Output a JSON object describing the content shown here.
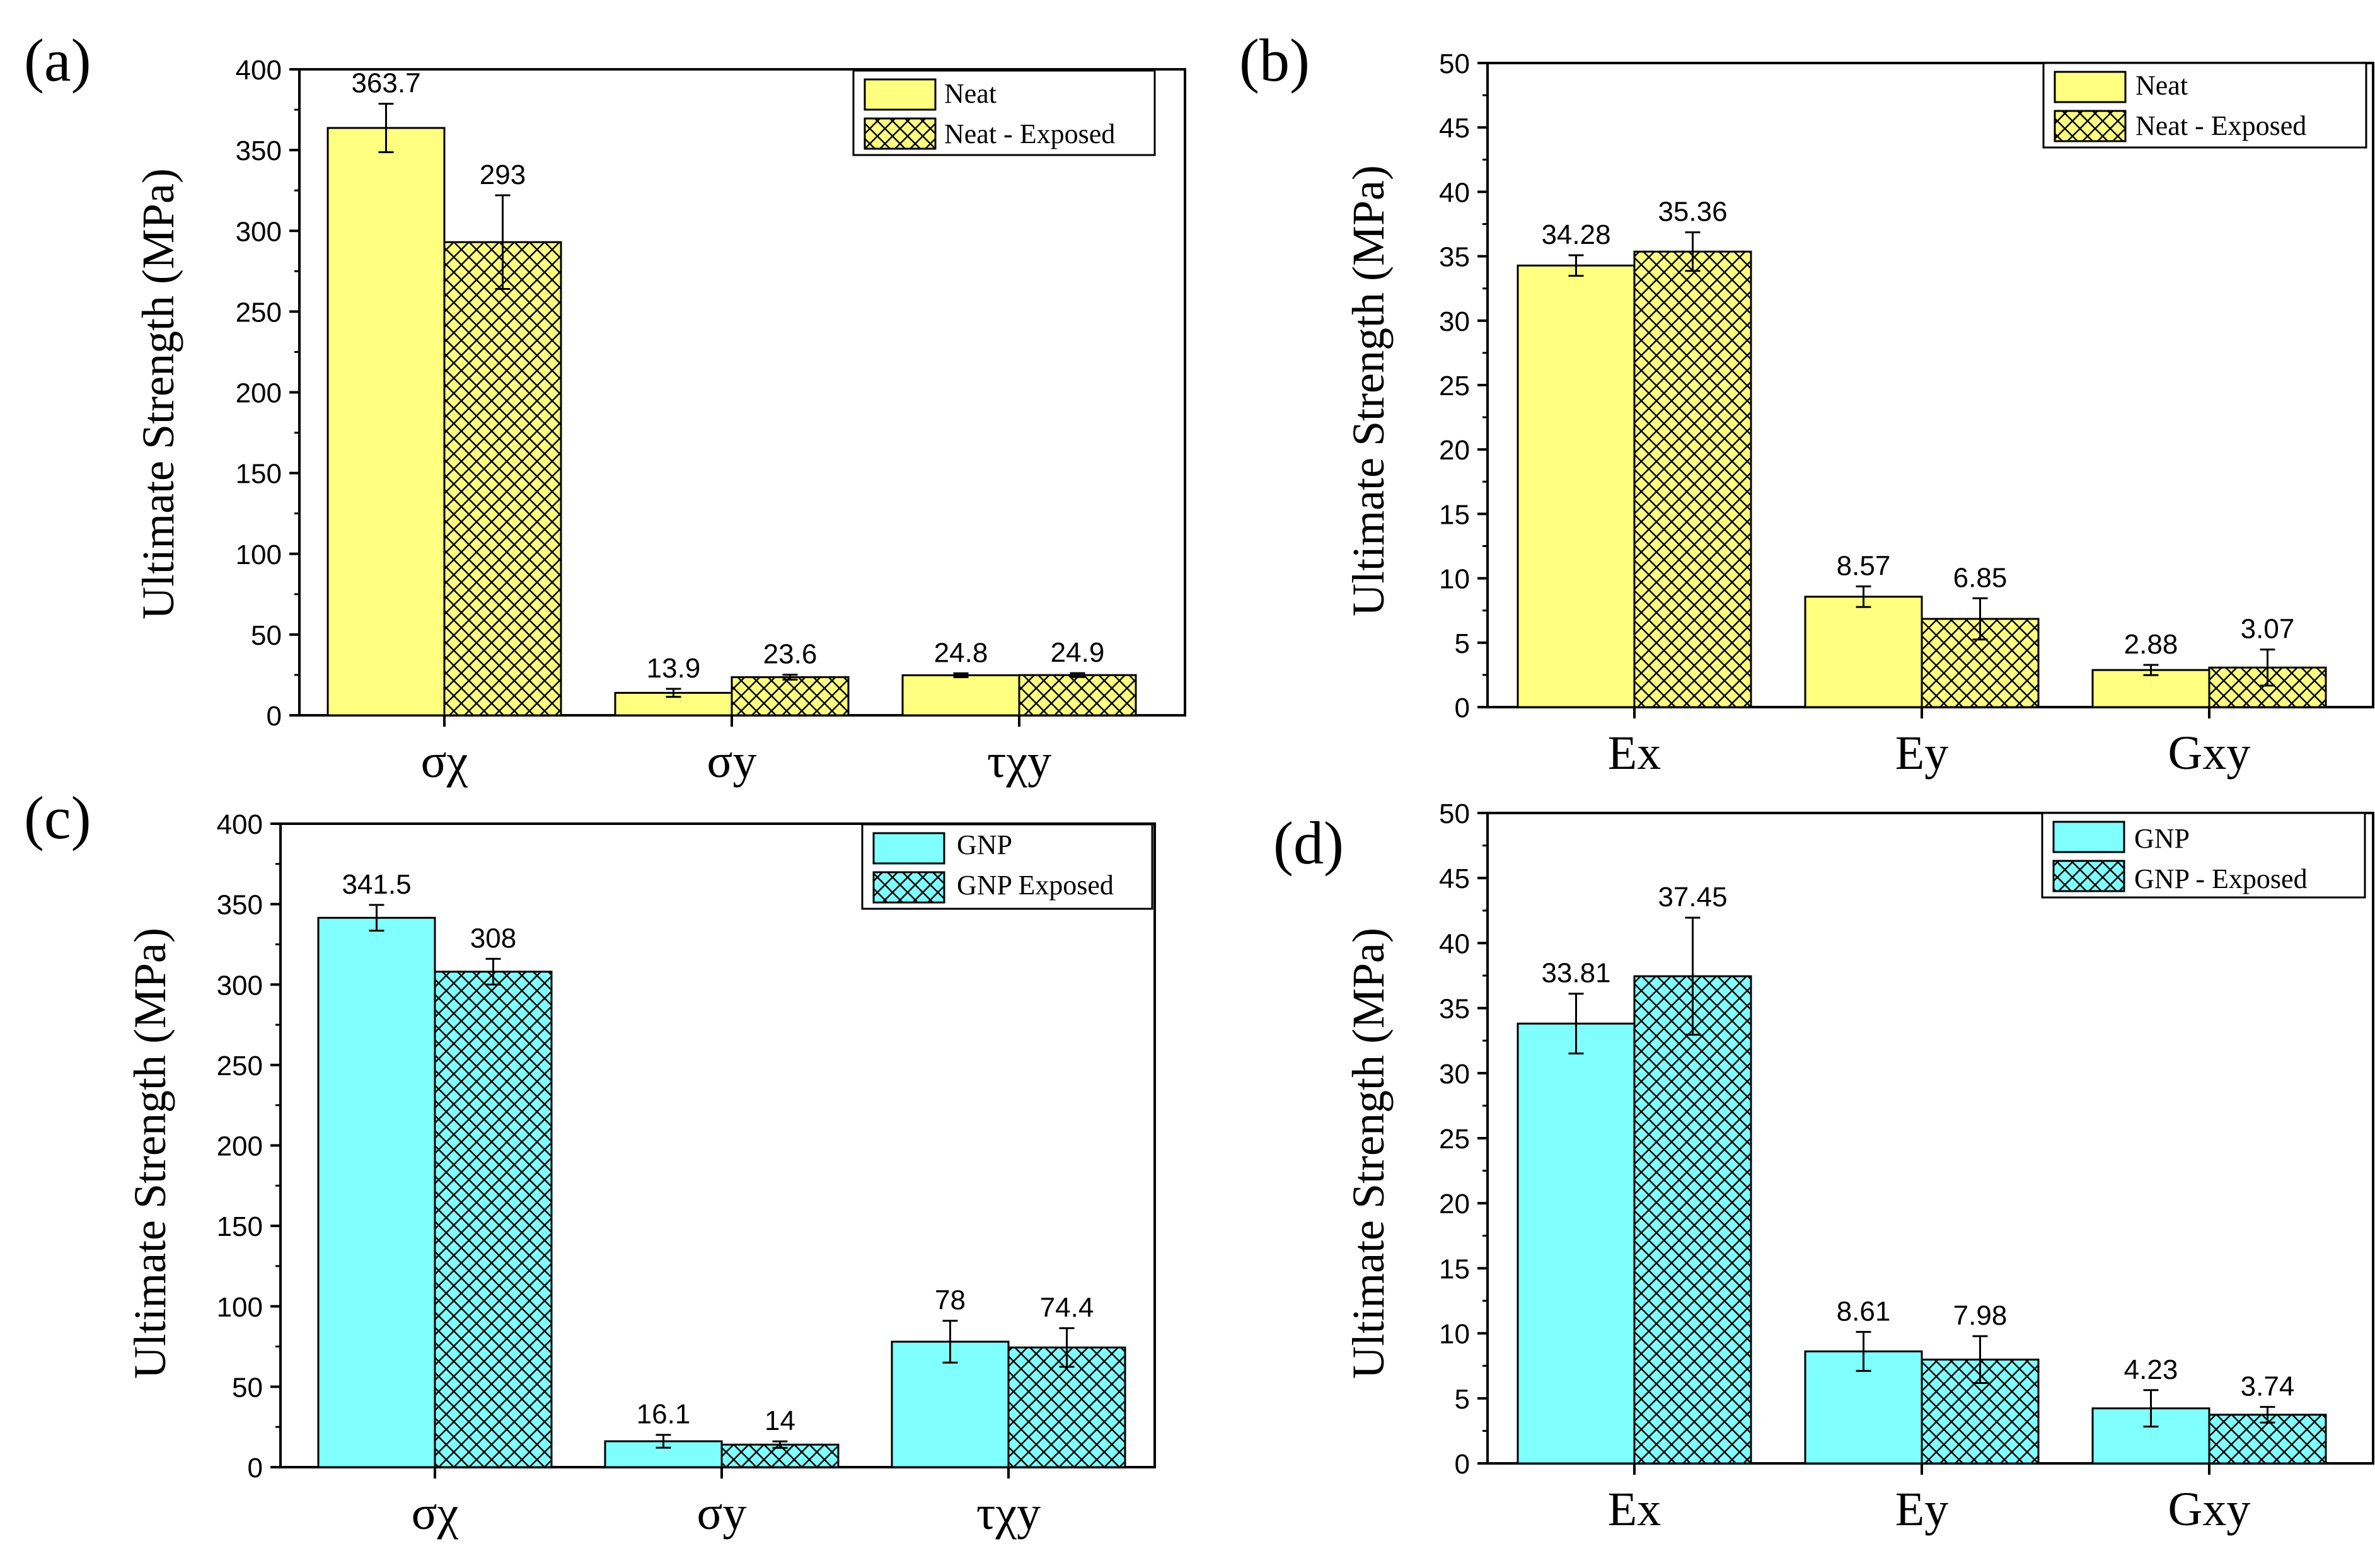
{
  "colors": {
    "yellow": "#FFFF80",
    "cyan": "#80FFFF",
    "axis": "#000000"
  },
  "panels": [
    {
      "id": "a",
      "panel_label": "(a)",
      "ylabel": "Ultimate Strength (MPa)",
      "ylim": [
        0,
        400
      ],
      "yticks": [
        "0",
        "50",
        "100",
        "150",
        "200",
        "250",
        "300",
        "350",
        "400"
      ],
      "categories": [
        "σχ",
        "σy",
        "τχy"
      ],
      "legend": [
        "Neat",
        "Neat - Exposed"
      ],
      "color": "yellow"
    },
    {
      "id": "b",
      "panel_label": "(b)",
      "ylabel": "Ultimate Strength (MPa)",
      "ylim": [
        0,
        50
      ],
      "yticks": [
        "0",
        "5",
        "10",
        "15",
        "20",
        "25",
        "30",
        "35",
        "40",
        "45",
        "50"
      ],
      "categories": [
        "Ex",
        "Ey",
        "Gxy"
      ],
      "legend": [
        "Neat",
        "Neat - Exposed"
      ],
      "color": "yellow"
    },
    {
      "id": "c",
      "panel_label": "(c)",
      "ylabel": "Ultimate Strength (MPa)",
      "ylim": [
        0,
        400
      ],
      "yticks": [
        "0",
        "50",
        "100",
        "150",
        "200",
        "250",
        "300",
        "350",
        "400"
      ],
      "categories": [
        "σχ",
        "σy",
        "τχy"
      ],
      "legend": [
        "GNP",
        "GNP Exposed"
      ],
      "color": "cyan"
    },
    {
      "id": "d",
      "panel_label": "(d)",
      "ylabel": "Ultimate Strength (MPa)",
      "ylim": [
        0,
        50
      ],
      "yticks": [
        "0",
        "5",
        "10",
        "15",
        "20",
        "25",
        "30",
        "35",
        "40",
        "45",
        "50"
      ],
      "categories": [
        "Ex",
        "Ey",
        "Gxy"
      ],
      "legend": [
        "GNP",
        "GNP - Exposed"
      ],
      "color": "cyan"
    }
  ],
  "chart_data": [
    {
      "type": "bar",
      "panel": "(a)",
      "ylabel": "Ultimate Strength (MPa)",
      "ylim": [
        0,
        400
      ],
      "categories": [
        "σχ",
        "σy",
        "τχy"
      ],
      "series": [
        {
          "name": "Neat",
          "values": [
            363.7,
            13.9,
            24.8
          ],
          "labels": [
            "363.7",
            "13.9",
            "24.8"
          ],
          "errors": [
            15,
            2.5,
            1.2
          ]
        },
        {
          "name": "Neat - Exposed",
          "values": [
            293,
            23.6,
            24.9
          ],
          "labels": [
            "293",
            "23.6",
            "24.9"
          ],
          "errors": [
            29,
            1.5,
            1.2
          ]
        }
      ],
      "legend": "top-right"
    },
    {
      "type": "bar",
      "panel": "(b)",
      "ylabel": "Ultimate Strength (MPa)",
      "ylim": [
        0,
        50
      ],
      "categories": [
        "Ex",
        "Ey",
        "Gxy"
      ],
      "series": [
        {
          "name": "Neat",
          "values": [
            34.28,
            8.57,
            2.88
          ],
          "labels": [
            "34.28",
            "8.57",
            "2.88"
          ],
          "errors": [
            0.8,
            0.8,
            0.4
          ]
        },
        {
          "name": "Neat - Exposed",
          "values": [
            35.36,
            6.85,
            3.07
          ],
          "labels": [
            "35.36",
            "6.85",
            "3.07"
          ],
          "errors": [
            1.5,
            1.6,
            1.4
          ]
        }
      ],
      "legend": "top-right"
    },
    {
      "type": "bar",
      "panel": "(c)",
      "ylabel": "Ultimate Strength (MPa)",
      "ylim": [
        0,
        400
      ],
      "categories": [
        "σχ",
        "σy",
        "τχy"
      ],
      "series": [
        {
          "name": "GNP",
          "values": [
            341.5,
            16.1,
            78
          ],
          "labels": [
            "341.5",
            "16.1",
            "78"
          ],
          "errors": [
            8,
            4,
            13
          ]
        },
        {
          "name": "GNP Exposed",
          "values": [
            308,
            14,
            74.4
          ],
          "labels": [
            "308",
            "14",
            "74.4"
          ],
          "errors": [
            8,
            2,
            12
          ]
        }
      ],
      "legend": "top-right"
    },
    {
      "type": "bar",
      "panel": "(d)",
      "ylabel": "Ultimate Strength (MPa)",
      "ylim": [
        0,
        50
      ],
      "categories": [
        "Ex",
        "Ey",
        "Gxy"
      ],
      "series": [
        {
          "name": "GNP",
          "values": [
            33.81,
            8.61,
            4.23
          ],
          "labels": [
            "33.81",
            "8.61",
            "4.23"
          ],
          "errors": [
            2.3,
            1.5,
            1.4
          ]
        },
        {
          "name": "GNP - Exposed",
          "values": [
            37.45,
            7.98,
            3.74
          ],
          "labels": [
            "37.45",
            "7.98",
            "3.74"
          ],
          "errors": [
            4.5,
            1.8,
            0.6
          ]
        }
      ],
      "legend": "top-right"
    }
  ]
}
